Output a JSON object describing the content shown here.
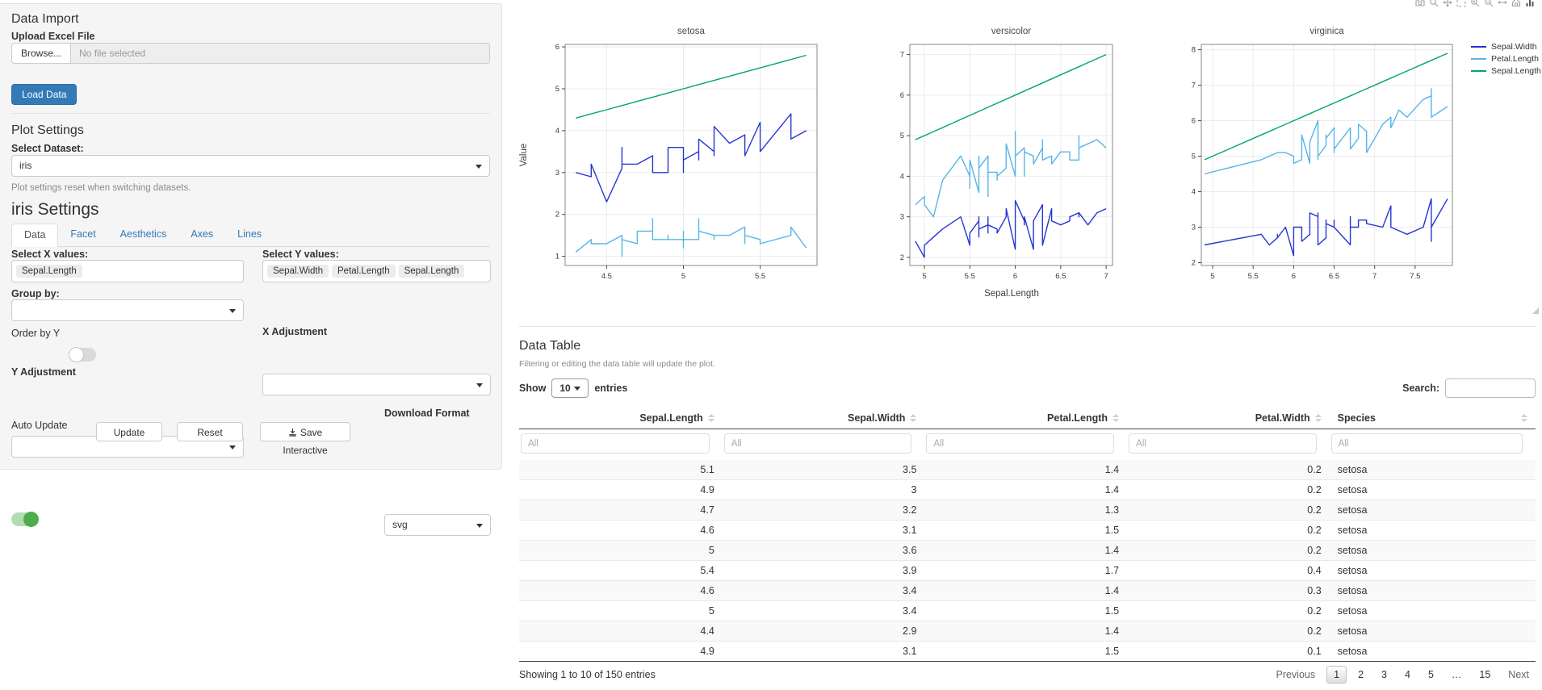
{
  "sidebar": {
    "data_import": {
      "title": "Data Import",
      "upload_label": "Upload Excel File",
      "browse_label": "Browse...",
      "file_placeholder": "No file selected",
      "load_button": "Load Data"
    },
    "plot_settings": {
      "title": "Plot Settings",
      "dataset_label": "Select Dataset:",
      "dataset_value": "iris",
      "help_text": "Plot settings reset when switching datasets."
    },
    "settings": {
      "title": "iris Settings",
      "tabs": [
        "Data",
        "Facet",
        "Aesthetics",
        "Axes",
        "Lines"
      ],
      "active_tab": "Data",
      "select_x_label": "Select X values:",
      "x_values": [
        "Sepal.Length"
      ],
      "select_y_label": "Select Y values:",
      "y_values": [
        "Sepal.Width",
        "Petal.Length",
        "Sepal.Length"
      ],
      "group_by_label": "Group by:",
      "group_by_value": "",
      "order_by_y_label": "Order by Y",
      "order_by_y_on": false,
      "x_adjustment_label": "X Adjustment",
      "x_adjustment_value": "",
      "y_adjustment_label": "Y Adjustment",
      "y_adjustment_value": "",
      "auto_update_label": "Auto Update",
      "auto_update_on": true,
      "update_button": "Update",
      "reset_button": "Reset",
      "save_button": "Save Interactive",
      "download_format_label": "Download Format",
      "download_format_value": "svg"
    }
  },
  "plot": {
    "modebar_icons": [
      "camera",
      "zoom",
      "pan",
      "box-select",
      "zoom-in",
      "zoom-out",
      "autoscale",
      "reset-axes",
      "plotly-logo"
    ]
  },
  "chart_data": {
    "type": "line",
    "title": "",
    "xlabel": "Sepal.Length",
    "ylabel": "Value",
    "legend_position": "top-right",
    "grid": true,
    "series": [
      {
        "name": "Sepal.Width",
        "color": "#2636d4",
        "col": 1
      },
      {
        "name": "Petal.Length",
        "color": "#58b5e8",
        "col": 2
      },
      {
        "name": "Sepal.Length",
        "color": "#00a37a",
        "col": 0
      }
    ],
    "x_col": 0,
    "facets": [
      {
        "title": "setosa",
        "xlim": [
          4.23,
          5.87
        ],
        "ylim": [
          0.78,
          6.06
        ],
        "xticks": [
          4.5,
          5,
          5.5
        ],
        "yticks": [
          1,
          2,
          3,
          4,
          5,
          6
        ],
        "rows": [
          [
            5.1,
            3.5,
            1.4
          ],
          [
            4.9,
            3.0,
            1.4
          ],
          [
            4.7,
            3.2,
            1.3
          ],
          [
            4.6,
            3.1,
            1.5
          ],
          [
            5.0,
            3.6,
            1.4
          ],
          [
            5.4,
            3.9,
            1.7
          ],
          [
            4.6,
            3.4,
            1.4
          ],
          [
            5.0,
            3.4,
            1.5
          ],
          [
            4.4,
            2.9,
            1.4
          ],
          [
            4.9,
            3.1,
            1.5
          ],
          [
            5.4,
            3.7,
            1.5
          ],
          [
            4.8,
            3.4,
            1.6
          ],
          [
            4.8,
            3.0,
            1.4
          ],
          [
            4.3,
            3.0,
            1.1
          ],
          [
            5.8,
            4.0,
            1.2
          ],
          [
            5.7,
            4.4,
            1.5
          ],
          [
            5.4,
            3.9,
            1.3
          ],
          [
            5.1,
            3.5,
            1.4
          ],
          [
            5.7,
            3.8,
            1.7
          ],
          [
            5.1,
            3.8,
            1.5
          ],
          [
            5.4,
            3.4,
            1.7
          ],
          [
            5.1,
            3.7,
            1.5
          ],
          [
            4.6,
            3.6,
            1.0
          ],
          [
            5.1,
            3.3,
            1.7
          ],
          [
            4.8,
            3.4,
            1.9
          ],
          [
            5.0,
            3.0,
            1.6
          ],
          [
            5.0,
            3.4,
            1.6
          ],
          [
            5.2,
            3.5,
            1.5
          ],
          [
            5.2,
            3.4,
            1.4
          ],
          [
            4.7,
            3.2,
            1.6
          ],
          [
            4.8,
            3.1,
            1.6
          ],
          [
            5.4,
            3.4,
            1.5
          ],
          [
            5.2,
            4.1,
            1.5
          ],
          [
            5.5,
            4.2,
            1.4
          ],
          [
            4.9,
            3.1,
            1.5
          ],
          [
            5.0,
            3.2,
            1.2
          ],
          [
            5.5,
            3.5,
            1.3
          ],
          [
            4.9,
            3.6,
            1.4
          ],
          [
            4.4,
            3.0,
            1.3
          ],
          [
            5.1,
            3.4,
            1.5
          ],
          [
            5.0,
            3.5,
            1.3
          ],
          [
            4.5,
            2.3,
            1.3
          ],
          [
            4.4,
            3.2,
            1.3
          ],
          [
            5.0,
            3.5,
            1.6
          ],
          [
            5.1,
            3.8,
            1.9
          ],
          [
            4.8,
            3.0,
            1.4
          ],
          [
            5.1,
            3.8,
            1.6
          ],
          [
            4.6,
            3.2,
            1.4
          ],
          [
            5.3,
            3.7,
            1.5
          ],
          [
            5.0,
            3.3,
            1.4
          ]
        ]
      },
      {
        "title": "versicolor",
        "xlim": [
          4.84,
          7.07
        ],
        "ylim": [
          1.8,
          7.25
        ],
        "xticks": [
          5,
          5.5,
          6,
          6.5,
          7
        ],
        "yticks": [
          2,
          3,
          4,
          5,
          6,
          7
        ],
        "rows": [
          [
            7.0,
            3.2,
            4.7
          ],
          [
            6.4,
            3.2,
            4.5
          ],
          [
            6.9,
            3.1,
            4.9
          ],
          [
            5.5,
            2.3,
            4.0
          ],
          [
            6.5,
            2.8,
            4.6
          ],
          [
            5.7,
            2.8,
            4.5
          ],
          [
            6.3,
            3.3,
            4.7
          ],
          [
            4.9,
            2.4,
            3.3
          ],
          [
            6.6,
            2.9,
            4.6
          ],
          [
            5.2,
            2.7,
            3.9
          ],
          [
            5.0,
            2.0,
            3.5
          ],
          [
            5.9,
            3.0,
            4.2
          ],
          [
            6.0,
            2.2,
            4.0
          ],
          [
            6.1,
            2.9,
            4.7
          ],
          [
            5.6,
            2.9,
            3.6
          ],
          [
            6.7,
            3.1,
            4.4
          ],
          [
            5.6,
            3.0,
            4.5
          ],
          [
            5.8,
            2.7,
            4.1
          ],
          [
            6.2,
            2.2,
            4.5
          ],
          [
            5.6,
            2.5,
            3.9
          ],
          [
            5.9,
            3.2,
            4.8
          ],
          [
            6.1,
            2.8,
            4.0
          ],
          [
            6.3,
            2.5,
            4.9
          ],
          [
            6.1,
            2.8,
            4.7
          ],
          [
            6.4,
            2.9,
            4.3
          ],
          [
            6.6,
            3.0,
            4.4
          ],
          [
            6.8,
            2.8,
            4.8
          ],
          [
            6.7,
            3.0,
            5.0
          ],
          [
            6.0,
            2.9,
            4.5
          ],
          [
            5.7,
            2.6,
            3.5
          ],
          [
            5.5,
            2.4,
            3.8
          ],
          [
            5.5,
            2.4,
            3.7
          ],
          [
            5.8,
            2.7,
            3.9
          ],
          [
            6.0,
            2.7,
            5.1
          ],
          [
            5.4,
            3.0,
            4.5
          ],
          [
            6.0,
            3.4,
            4.5
          ],
          [
            6.7,
            3.1,
            4.7
          ],
          [
            6.3,
            2.3,
            4.4
          ],
          [
            5.6,
            3.0,
            4.1
          ],
          [
            5.5,
            2.5,
            4.0
          ],
          [
            5.5,
            2.6,
            4.4
          ],
          [
            6.1,
            3.0,
            4.6
          ],
          [
            5.8,
            2.6,
            4.0
          ],
          [
            5.0,
            2.3,
            3.3
          ],
          [
            5.6,
            2.7,
            4.2
          ],
          [
            5.7,
            3.0,
            4.2
          ],
          [
            5.7,
            2.9,
            4.2
          ],
          [
            6.2,
            2.9,
            4.3
          ],
          [
            5.1,
            2.5,
            3.0
          ],
          [
            5.7,
            2.8,
            4.1
          ]
        ]
      },
      {
        "title": "virginica",
        "xlim": [
          4.86,
          7.96
        ],
        "ylim": [
          1.92,
          8.15
        ],
        "xticks": [
          5,
          5.5,
          6,
          6.5,
          7,
          7.5
        ],
        "yticks": [
          2,
          3,
          4,
          5,
          6,
          7,
          8
        ],
        "rows": [
          [
            6.3,
            3.3,
            6.0
          ],
          [
            5.8,
            2.7,
            5.1
          ],
          [
            7.1,
            3.0,
            5.9
          ],
          [
            6.3,
            2.9,
            5.6
          ],
          [
            6.5,
            3.0,
            5.8
          ],
          [
            7.6,
            3.0,
            6.6
          ],
          [
            4.9,
            2.5,
            4.5
          ],
          [
            7.3,
            2.9,
            6.3
          ],
          [
            6.7,
            2.5,
            5.8
          ],
          [
            7.2,
            3.6,
            6.1
          ],
          [
            6.5,
            3.2,
            5.1
          ],
          [
            6.4,
            2.7,
            5.3
          ],
          [
            6.8,
            3.0,
            5.5
          ],
          [
            5.7,
            2.5,
            5.0
          ],
          [
            5.8,
            2.8,
            5.1
          ],
          [
            6.4,
            3.2,
            5.3
          ],
          [
            6.5,
            3.0,
            5.5
          ],
          [
            7.7,
            3.8,
            6.7
          ],
          [
            7.7,
            2.6,
            6.9
          ],
          [
            6.0,
            2.2,
            5.0
          ],
          [
            6.9,
            3.2,
            5.7
          ],
          [
            5.6,
            2.8,
            4.9
          ],
          [
            7.7,
            2.8,
            6.7
          ],
          [
            6.3,
            2.7,
            4.9
          ],
          [
            6.7,
            3.3,
            5.7
          ],
          [
            7.2,
            3.2,
            6.0
          ],
          [
            6.2,
            2.8,
            4.8
          ],
          [
            6.1,
            3.0,
            4.9
          ],
          [
            6.4,
            2.8,
            5.6
          ],
          [
            7.2,
            3.0,
            5.8
          ],
          [
            7.4,
            2.8,
            6.1
          ],
          [
            7.9,
            3.8,
            6.4
          ],
          [
            6.4,
            2.8,
            5.6
          ],
          [
            6.3,
            2.8,
            5.1
          ],
          [
            6.1,
            2.6,
            5.6
          ],
          [
            7.7,
            3.0,
            6.1
          ],
          [
            6.3,
            3.4,
            5.6
          ],
          [
            6.4,
            3.1,
            5.5
          ],
          [
            6.0,
            3.0,
            4.8
          ],
          [
            6.9,
            3.1,
            5.4
          ],
          [
            6.7,
            3.1,
            5.6
          ],
          [
            6.9,
            3.1,
            5.1
          ],
          [
            5.8,
            2.7,
            5.1
          ],
          [
            6.8,
            3.2,
            5.9
          ],
          [
            6.7,
            3.3,
            5.7
          ],
          [
            6.7,
            3.0,
            5.2
          ],
          [
            6.3,
            2.5,
            5.0
          ],
          [
            6.5,
            3.0,
            5.2
          ],
          [
            6.2,
            3.4,
            5.4
          ],
          [
            5.9,
            3.0,
            5.1
          ]
        ]
      }
    ]
  },
  "table": {
    "title": "Data Table",
    "subtitle": "Filtering or editing the data table will update the plot.",
    "show_label": "Show",
    "page_length": "10",
    "entries_label": "entries",
    "search_label": "Search:",
    "search_value": "",
    "filter_placeholder": "All",
    "columns": [
      {
        "label": "Sepal.Length",
        "align": "right"
      },
      {
        "label": "Sepal.Width",
        "align": "right"
      },
      {
        "label": "Petal.Length",
        "align": "right"
      },
      {
        "label": "Petal.Width",
        "align": "right"
      },
      {
        "label": "Species",
        "align": "left"
      }
    ],
    "rows": [
      [
        "5.1",
        "3.5",
        "1.4",
        "0.2",
        "setosa"
      ],
      [
        "4.9",
        "3",
        "1.4",
        "0.2",
        "setosa"
      ],
      [
        "4.7",
        "3.2",
        "1.3",
        "0.2",
        "setosa"
      ],
      [
        "4.6",
        "3.1",
        "1.5",
        "0.2",
        "setosa"
      ],
      [
        "5",
        "3.6",
        "1.4",
        "0.2",
        "setosa"
      ],
      [
        "5.4",
        "3.9",
        "1.7",
        "0.4",
        "setosa"
      ],
      [
        "4.6",
        "3.4",
        "1.4",
        "0.3",
        "setosa"
      ],
      [
        "5",
        "3.4",
        "1.5",
        "0.2",
        "setosa"
      ],
      [
        "4.4",
        "2.9",
        "1.4",
        "0.2",
        "setosa"
      ],
      [
        "4.9",
        "3.1",
        "1.5",
        "0.1",
        "setosa"
      ]
    ],
    "info": "Showing 1 to 10 of 150 entries",
    "pagination": {
      "previous": "Previous",
      "pages": [
        "1",
        "2",
        "3",
        "4",
        "5",
        "…",
        "15"
      ],
      "active": "1",
      "next": "Next"
    }
  }
}
